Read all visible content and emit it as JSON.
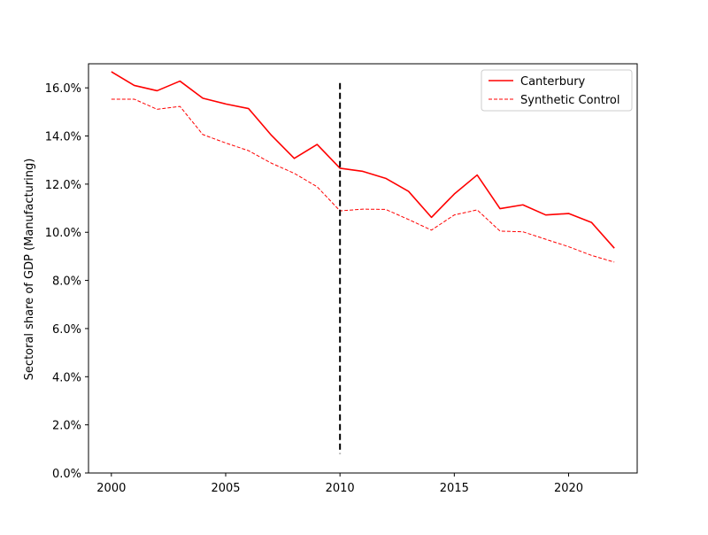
{
  "chart_data": {
    "type": "line",
    "title": "",
    "xlabel": "",
    "ylabel": "Sectoral share of GDP (Manufacturing)",
    "xlim": [
      1999,
      2023
    ],
    "ylim": [
      0,
      0.17
    ],
    "x_ticks": [
      2000,
      2005,
      2010,
      2015,
      2020
    ],
    "y_ticks": [
      0,
      0.02,
      0.04,
      0.06,
      0.08,
      0.1,
      0.12,
      0.14,
      0.16
    ],
    "y_tick_labels": [
      "0.0%",
      "2.0%",
      "4.0%",
      "6.0%",
      "8.0%",
      "10.0%",
      "12.0%",
      "14.0%",
      "16.0%"
    ],
    "x_tick_labels": [
      "2000",
      "2005",
      "2010",
      "2015",
      "2020"
    ],
    "x": [
      2000,
      2001,
      2002,
      2003,
      2004,
      2005,
      2006,
      2007,
      2008,
      2009,
      2010,
      2011,
      2012,
      2013,
      2014,
      2015,
      2016,
      2017,
      2018,
      2019,
      2020,
      2021,
      2022
    ],
    "series": [
      {
        "name": "Canterbury",
        "style": "solid",
        "color": "#ff0000",
        "values": [
          0.1667,
          0.161,
          0.1588,
          0.1628,
          0.1557,
          0.1533,
          0.1514,
          0.1403,
          0.1307,
          0.1365,
          0.1266,
          0.1253,
          0.1224,
          0.117,
          0.1062,
          0.1159,
          0.1238,
          0.1098,
          0.1114,
          0.1072,
          0.1078,
          0.1041,
          0.0934
        ]
      },
      {
        "name": "Synthetic Control",
        "style": "dashed",
        "color": "#ff0000",
        "values": [
          0.1553,
          0.1553,
          0.1511,
          0.1523,
          0.1406,
          0.1371,
          0.1339,
          0.1287,
          0.1245,
          0.1189,
          0.1089,
          0.1096,
          0.1095,
          0.1053,
          0.1009,
          0.1072,
          0.1093,
          0.1005,
          0.1002,
          0.0971,
          0.094,
          0.0904,
          0.0876
        ]
      }
    ],
    "vline": {
      "x": 2010,
      "y_from": 0.008,
      "y_to": 0.162,
      "color": "#000000",
      "style": "dashed"
    },
    "grid": false,
    "legend_position": "top-right"
  }
}
